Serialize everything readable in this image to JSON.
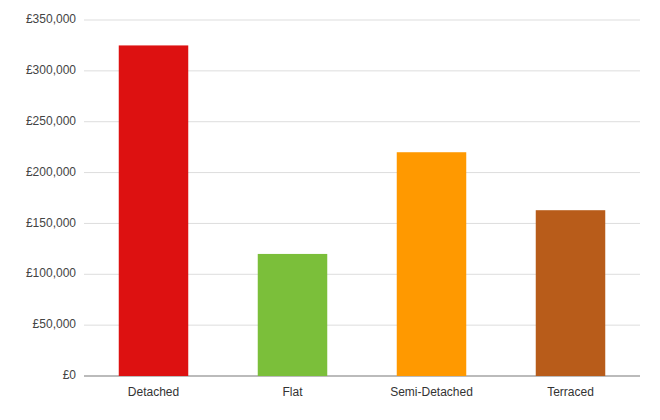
{
  "chart_data": {
    "type": "bar",
    "categories": [
      "Detached",
      "Flat",
      "Semi-Detached",
      "Terraced"
    ],
    "values": [
      325000,
      120000,
      220000,
      163000
    ],
    "colors": [
      "#dd1111",
      "#7bbf3a",
      "#ff9900",
      "#b85c1a"
    ],
    "ylim": [
      0,
      350000
    ],
    "yticks": [
      {
        "value": 0,
        "label": "£0"
      },
      {
        "value": 50000,
        "label": "£50,000"
      },
      {
        "value": 100000,
        "label": "£100,000"
      },
      {
        "value": 150000,
        "label": "£150,000"
      },
      {
        "value": 200000,
        "label": "£200,000"
      },
      {
        "value": 250000,
        "label": "£250,000"
      },
      {
        "value": 300000,
        "label": "£300,000"
      },
      {
        "value": 350000,
        "label": "£350,000"
      }
    ],
    "grid": true
  }
}
